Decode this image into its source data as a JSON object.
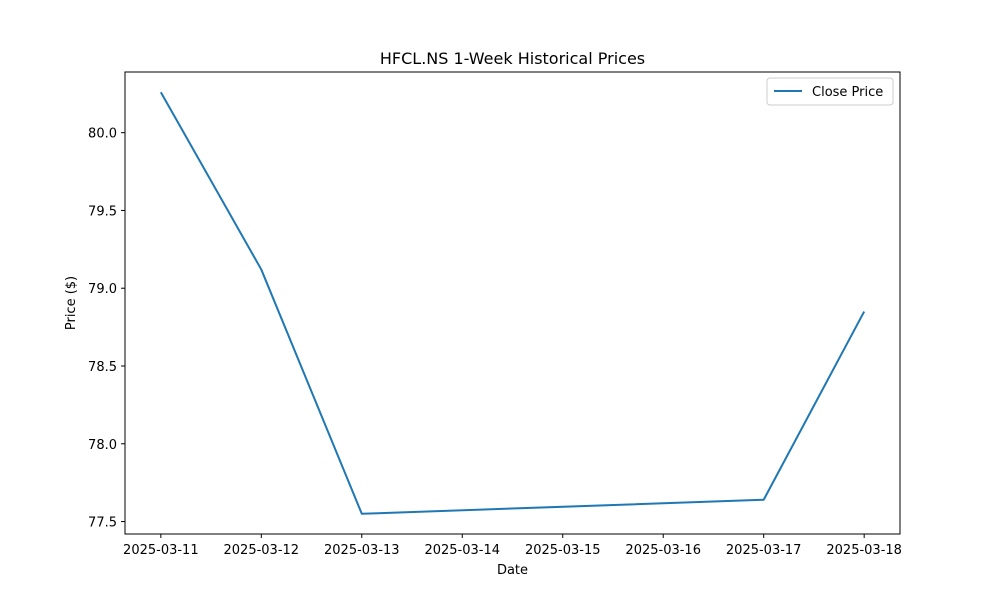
{
  "chart_data": {
    "type": "line",
    "title": "HFCL.NS 1-Week Historical Prices",
    "xlabel": "Date",
    "ylabel": "Price ($)",
    "x": [
      "2025-03-11",
      "2025-03-12",
      "2025-03-13",
      "2025-03-17",
      "2025-03-18"
    ],
    "x_ticks": [
      "2025-03-11",
      "2025-03-12",
      "2025-03-13",
      "2025-03-14",
      "2025-03-15",
      "2025-03-16",
      "2025-03-17",
      "2025-03-18"
    ],
    "y_ticks": [
      "77.5",
      "78.0",
      "78.5",
      "79.0",
      "79.5",
      "80.0"
    ],
    "xlim": [
      "2025-03-10T15:26:24",
      "2025-03-18T08:33:36"
    ],
    "ylim": [
      77.42,
      80.39
    ],
    "series": [
      {
        "name": "Close Price",
        "color": "#1f77b4",
        "values": [
          80.26,
          79.12,
          77.55,
          77.64,
          78.85
        ]
      }
    ],
    "grid": false,
    "legend": "top-right"
  }
}
